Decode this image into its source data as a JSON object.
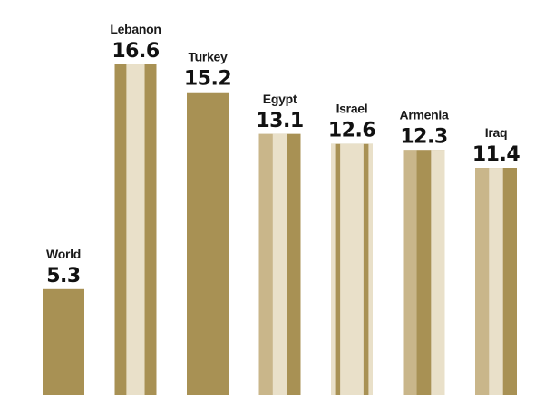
{
  "chart_data": {
    "type": "bar",
    "categories": [
      "World",
      "Lebanon",
      "Turkey",
      "Egypt",
      "Israel",
      "Armenia",
      "Iraq"
    ],
    "values": [
      5.3,
      16.6,
      15.2,
      13.1,
      12.6,
      12.3,
      11.4
    ],
    "color": "#a89154",
    "ylim": [
      0,
      17.5
    ]
  }
}
